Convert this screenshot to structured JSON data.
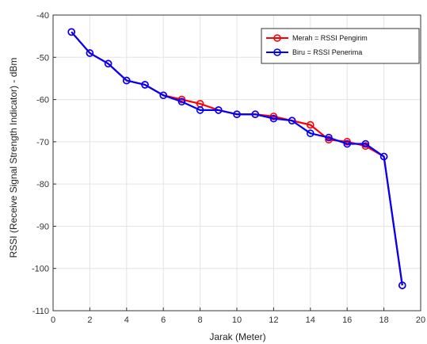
{
  "chart_data": {
    "type": "line",
    "title": "",
    "xlabel": "Jarak (Meter)",
    "ylabel": "RSSI (Receive Signal Strength Indicator) - dBm",
    "xlim": [
      0,
      20
    ],
    "ylim": [
      -110,
      -40
    ],
    "xticks": [
      0,
      2,
      4,
      6,
      8,
      10,
      12,
      14,
      16,
      18,
      20
    ],
    "yticks": [
      -110,
      -100,
      -90,
      -80,
      -70,
      -60,
      -50,
      -40
    ],
    "grid": true,
    "legend_position": "top-right",
    "x": [
      1,
      2,
      3,
      4,
      5,
      6,
      7,
      8,
      9,
      10,
      11,
      12,
      13,
      14,
      15,
      16,
      17,
      18,
      19
    ],
    "series": [
      {
        "name": "Merah = RSSI Pengirim",
        "color": "#ff0000",
        "values": [
          -44,
          -49,
          -51.5,
          -55.5,
          -56.5,
          -59,
          -60,
          -61,
          -62.5,
          -63.5,
          -63.5,
          -64,
          -65,
          -66,
          -69.5,
          -70,
          -71,
          -73.5,
          -104
        ]
      },
      {
        "name": "Biru = RSSI Penerima",
        "color": "#0000ff",
        "values": [
          -44,
          -49,
          -51.5,
          -55.5,
          -56.5,
          -59,
          -60.5,
          -62.5,
          -62.5,
          -63.5,
          -63.5,
          -64.5,
          -65,
          -68,
          -69,
          -70.5,
          -70.5,
          -73.5,
          -104
        ]
      }
    ]
  }
}
